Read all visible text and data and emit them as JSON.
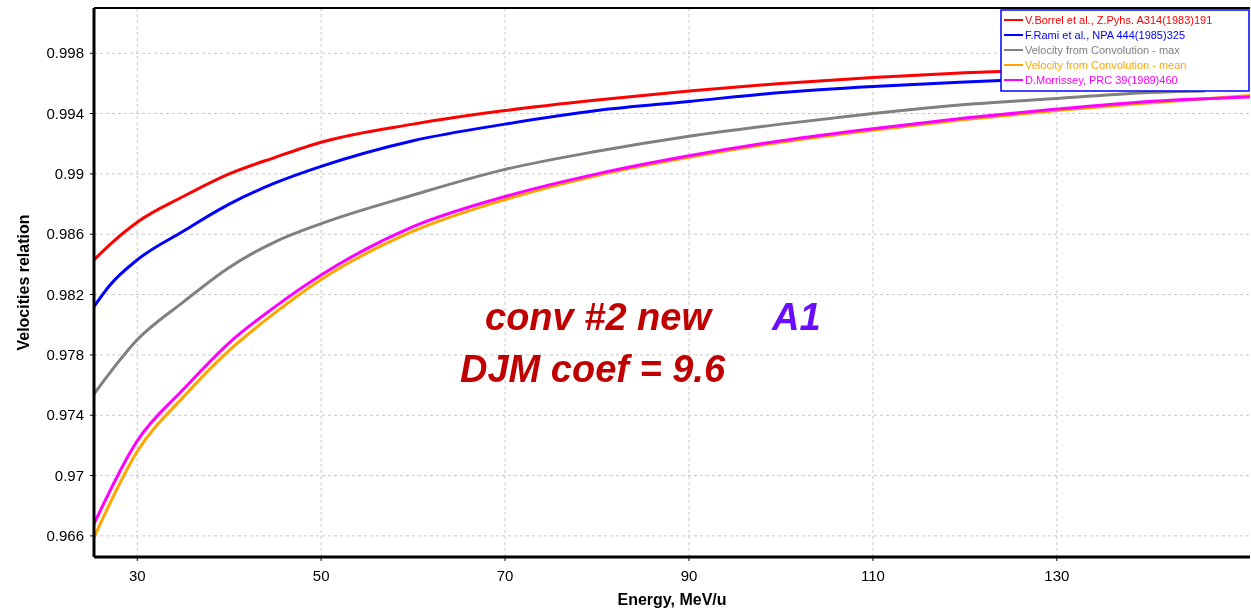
{
  "chart_data": {
    "type": "line",
    "xlabel": "Energy, MeV/u",
    "ylabel": "Velocities relation",
    "xlim": [
      25.3,
      151
    ],
    "xticks": [
      30,
      50,
      70,
      90,
      110,
      130
    ],
    "ylim": [
      0.9646,
      1.001
    ],
    "yticks": [
      0.966,
      0.97,
      0.974,
      0.978,
      0.982,
      0.986,
      0.99,
      0.994,
      0.998
    ],
    "grid": true,
    "legend": "top right",
    "series": [
      {
        "name": "V.Borrel et al., Z.Pyhs. A314(1983)191",
        "color": "#ff0000",
        "x": [
          25.3,
          27,
          30,
          35,
          40,
          45,
          50,
          60,
          70,
          80,
          90,
          100,
          110,
          120,
          124
        ],
        "values": [
          0.9843,
          0.9853,
          0.9868,
          0.9885,
          0.99,
          0.9911,
          0.9921,
          0.9933,
          0.9942,
          0.9949,
          0.9955,
          0.996,
          0.9964,
          0.9967,
          0.9968
        ]
      },
      {
        "name": "F.Rami et al., NPA 444(1985)325",
        "color": "#0000ff",
        "x": [
          25.3,
          27,
          30,
          35,
          40,
          45,
          50,
          60,
          70,
          80,
          90,
          100,
          110,
          120,
          124
        ],
        "values": [
          0.9812,
          0.9826,
          0.9843,
          0.9862,
          0.988,
          0.9894,
          0.9905,
          0.9922,
          0.9933,
          0.9942,
          0.9948,
          0.9954,
          0.9958,
          0.9961,
          0.9962
        ]
      },
      {
        "name": "Velocity from Convolution  - max",
        "color": "#808080",
        "x": [
          25.3,
          30,
          35,
          40,
          45,
          50,
          60,
          70,
          80,
          90,
          100,
          110,
          120,
          130,
          140,
          146
        ],
        "values": [
          0.9754,
          0.979,
          0.9815,
          0.9838,
          0.9855,
          0.9867,
          0.9886,
          0.9903,
          0.9915,
          0.9925,
          0.9933,
          0.994,
          0.9946,
          0.995,
          0.9954,
          0.9955
        ]
      },
      {
        "name": "Velocity from Convolution  - mean",
        "color": "#ffa500",
        "x": [
          25.3,
          30,
          35,
          40,
          45,
          50,
          60,
          70,
          80,
          90,
          100,
          110,
          120,
          130,
          140,
          151
        ],
        "values": [
          0.9659,
          0.9716,
          0.9752,
          0.9783,
          0.9808,
          0.983,
          0.9862,
          0.9883,
          0.9899,
          0.9911,
          0.9921,
          0.9929,
          0.9936,
          0.9942,
          0.9947,
          0.9952
        ]
      },
      {
        "name": "D.Morrissey, PRC 39(1989)460",
        "color": "#ff00ff",
        "x": [
          25.3,
          30,
          35,
          40,
          45,
          50,
          60,
          70,
          80,
          90,
          100,
          110,
          120,
          130,
          140,
          151
        ],
        "values": [
          0.9668,
          0.9723,
          0.9757,
          0.9788,
          0.9812,
          0.9833,
          0.9865,
          0.9885,
          0.99,
          0.9912,
          0.9922,
          0.993,
          0.9937,
          0.9943,
          0.9948,
          0.9951
        ]
      }
    ],
    "annotations": [
      "conv #2 new",
      "A1",
      "DJM coef = 9.6"
    ]
  }
}
